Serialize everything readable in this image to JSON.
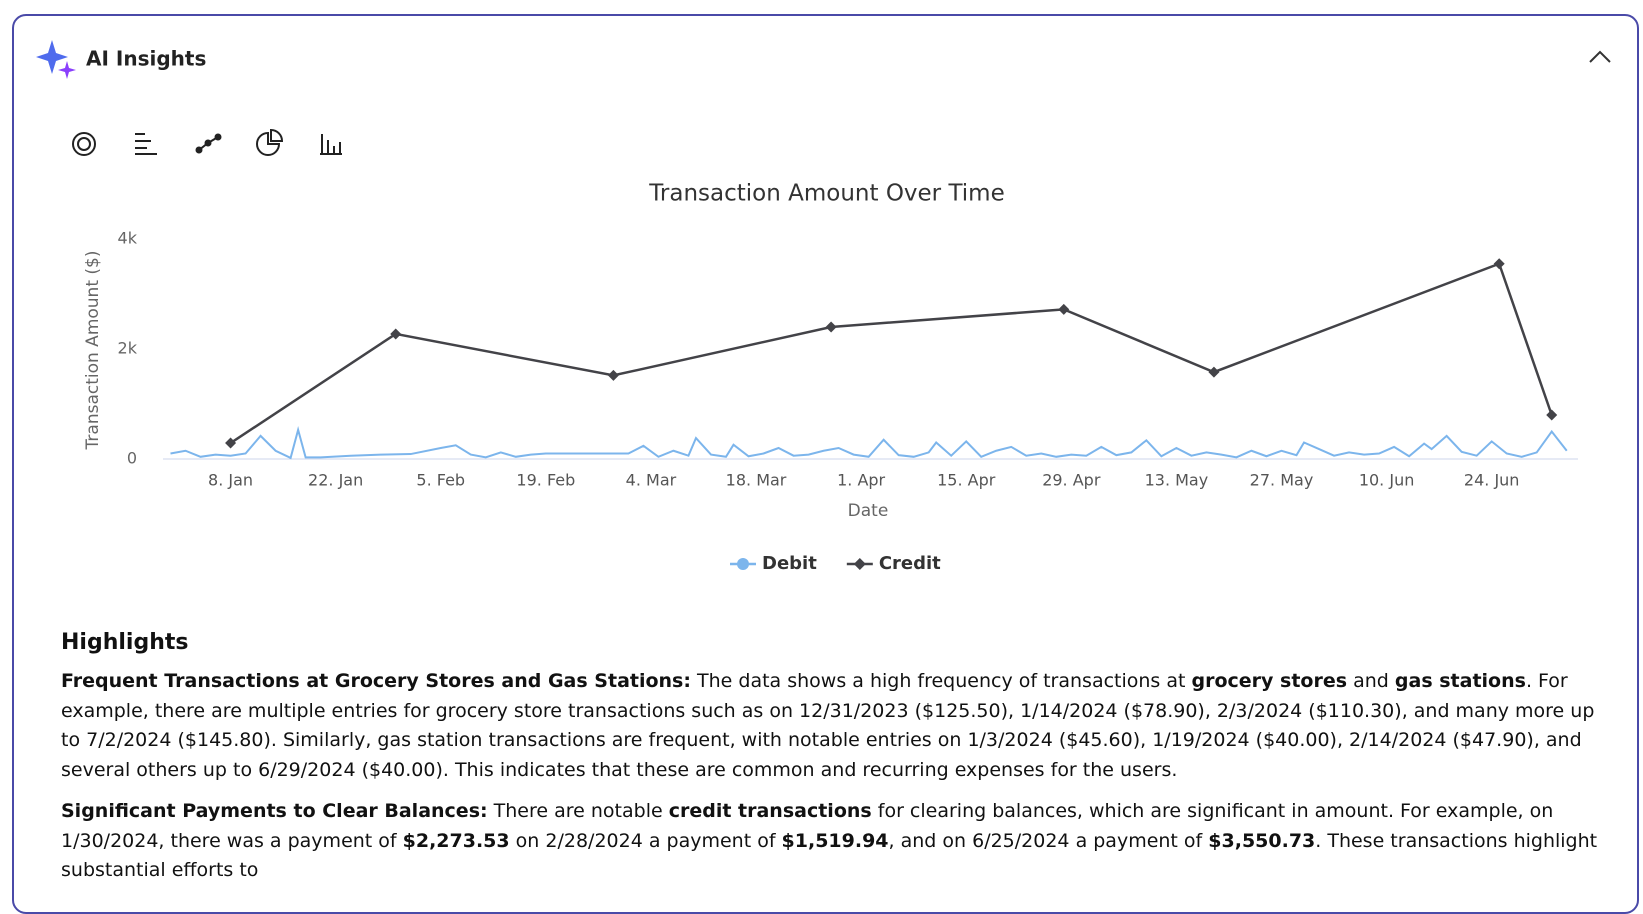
{
  "header": {
    "title": "AI Insights"
  },
  "chart_data": {
    "type": "line",
    "title": "Transaction Amount Over Time",
    "x_label": "Date",
    "y_label": "Transaction Amount ($)",
    "xlim": [
      -1,
      187.5
    ],
    "ylim": [
      0,
      4000
    ],
    "xticks": [
      {
        "value": 8,
        "label": "8. Jan"
      },
      {
        "value": 22,
        "label": "22. Jan"
      },
      {
        "value": 36,
        "label": "5. Feb"
      },
      {
        "value": 50,
        "label": "19. Feb"
      },
      {
        "value": 64,
        "label": "4. Mar"
      },
      {
        "value": 78,
        "label": "18. Mar"
      },
      {
        "value": 92,
        "label": "1. Apr"
      },
      {
        "value": 106,
        "label": "15. Apr"
      },
      {
        "value": 120,
        "label": "29. Apr"
      },
      {
        "value": 134,
        "label": "13. May"
      },
      {
        "value": 148,
        "label": "27. May"
      },
      {
        "value": 162,
        "label": "10. Jun"
      },
      {
        "value": 176,
        "label": "24. Jun"
      }
    ],
    "yticks": [
      0,
      {
        "value": 2000,
        "label": "2k"
      },
      {
        "value": 4000,
        "label": "4k"
      }
    ],
    "series": [
      {
        "name": "Debit",
        "color": "#7cb5ec",
        "marker": "circle",
        "show_markers": false,
        "x": [
          0,
          2,
          4,
          6,
          8,
          10,
          12,
          14,
          16,
          17,
          18,
          20,
          24,
          28,
          32,
          36,
          38,
          40,
          42,
          44,
          46,
          48,
          50,
          54,
          58,
          61,
          63,
          65,
          67,
          69,
          70,
          72,
          74,
          75,
          77,
          79,
          81,
          83,
          85,
          87,
          89,
          91,
          93,
          95,
          97,
          99,
          101,
          102,
          104,
          106,
          108,
          110,
          112,
          114,
          116,
          118,
          120,
          122,
          124,
          126,
          128,
          130,
          132,
          134,
          136,
          138,
          140,
          142,
          144,
          146,
          148,
          150,
          151,
          153,
          155,
          157,
          159,
          161,
          163,
          165,
          167,
          168,
          170,
          172,
          174,
          176,
          178,
          180,
          182,
          184,
          186
        ],
        "values": [
          100,
          150,
          40,
          80,
          60,
          100,
          420,
          150,
          20,
          530,
          30,
          30,
          60,
          80,
          90,
          200,
          250,
          80,
          30,
          120,
          40,
          80,
          100,
          100,
          100,
          100,
          240,
          40,
          150,
          60,
          380,
          80,
          40,
          260,
          50,
          100,
          200,
          60,
          80,
          150,
          200,
          80,
          40,
          350,
          70,
          40,
          120,
          300,
          60,
          320,
          40,
          150,
          220,
          60,
          100,
          40,
          80,
          60,
          220,
          70,
          120,
          340,
          50,
          200,
          60,
          120,
          80,
          30,
          150,
          50,
          150,
          70,
          300,
          180,
          60,
          120,
          80,
          100,
          220,
          50,
          280,
          180,
          420,
          130,
          60,
          320,
          100,
          40,
          120,
          500,
          150
        ]
      },
      {
        "name": "Credit",
        "color": "#434348",
        "marker": "diamond",
        "show_markers": true,
        "x": [
          8,
          30,
          59,
          88,
          119,
          139,
          177,
          184
        ],
        "values": [
          290,
          2273.53,
          1519.94,
          2400,
          2720,
          1580,
          3550.73,
          800
        ]
      }
    ]
  },
  "highlights": {
    "title": "Highlights",
    "paragraphs": [
      {
        "runs": [
          {
            "text": "Frequent Transactions at Grocery Stores and Gas Stations:",
            "bold": true
          },
          {
            "text": " The data shows a high frequency of transactions at ",
            "bold": false
          },
          {
            "text": "grocery stores",
            "bold": true
          },
          {
            "text": " and ",
            "bold": false
          },
          {
            "text": "gas stations",
            "bold": true
          },
          {
            "text": ". For example, there are multiple entries for grocery store transactions such as on 12/31/2023 ($125.50), 1/14/2024 ($78.90), 2/3/2024 ($110.30), and many more up to 7/2/2024 ($145.80). Similarly, gas station transactions are frequent, with notable entries on 1/3/2024 ($45.60), 1/19/2024 ($40.00), 2/14/2024 ($47.90), and several others up to 6/29/2024 ($40.00). This indicates that these are common and recurring expenses for the users.",
            "bold": false
          }
        ]
      },
      {
        "runs": [
          {
            "text": "Significant Payments to Clear Balances:",
            "bold": true
          },
          {
            "text": " There are notable ",
            "bold": false
          },
          {
            "text": "credit transactions",
            "bold": true
          },
          {
            "text": " for clearing balances, which are significant in amount. For example, on 1/30/2024, there was a payment of ",
            "bold": false
          },
          {
            "text": "$2,273.53",
            "bold": true
          },
          {
            "text": " on 2/28/2024 a payment of ",
            "bold": false
          },
          {
            "text": "$1,519.94",
            "bold": true
          },
          {
            "text": ", and on 6/25/2024 a payment of ",
            "bold": false
          },
          {
            "text": "$3,550.73",
            "bold": true
          },
          {
            "text": ". These transactions highlight substantial efforts to",
            "bold": false
          }
        ]
      }
    ]
  }
}
